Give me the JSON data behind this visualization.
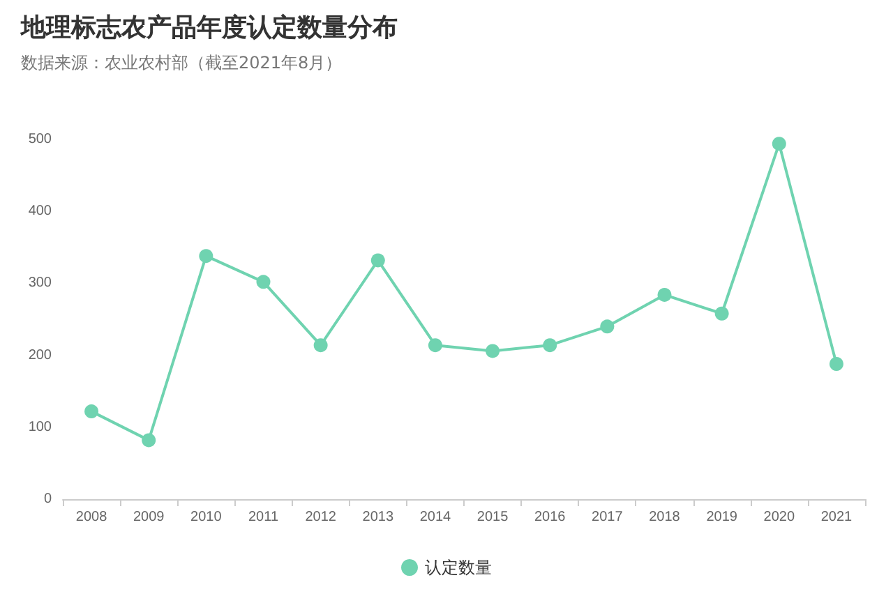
{
  "chart_data": {
    "type": "line",
    "title": "地理标志农产品年度认定数量分布",
    "subtitle": "数据来源：农业农村部（截至2021年8月）",
    "categories": [
      "2008",
      "2009",
      "2010",
      "2011",
      "2012",
      "2013",
      "2014",
      "2015",
      "2016",
      "2017",
      "2018",
      "2019",
      "2020",
      "2021"
    ],
    "series": [
      {
        "name": "认定数量",
        "color": "#6fd3b0",
        "values": [
          122,
          82,
          338,
          302,
          214,
          332,
          214,
          206,
          214,
          240,
          284,
          258,
          494,
          188
        ]
      }
    ],
    "ylim": [
      0,
      500
    ],
    "yticks": [
      0,
      100,
      200,
      300,
      400,
      500
    ],
    "grid": false,
    "legend": "bottom",
    "marker": "circle",
    "line_style": "solid"
  }
}
